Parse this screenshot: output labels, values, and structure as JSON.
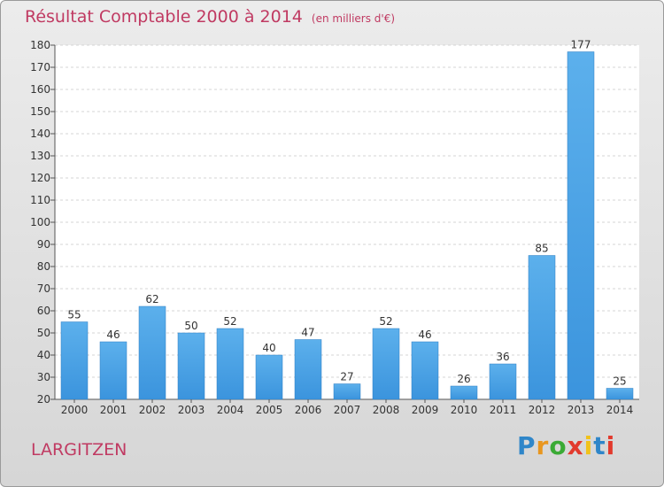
{
  "chart_data": {
    "type": "bar",
    "title": "Résultat Comptable 2000 à 2014",
    "subtitle": "(en milliers d'€)",
    "categories": [
      "2000",
      "2001",
      "2002",
      "2003",
      "2004",
      "2005",
      "2006",
      "2007",
      "2008",
      "2009",
      "2010",
      "2011",
      "2012",
      "2013",
      "2014"
    ],
    "values": [
      55,
      46,
      62,
      50,
      52,
      40,
      47,
      27,
      52,
      46,
      26,
      36,
      85,
      177,
      25
    ],
    "ylim": [
      20,
      180
    ],
    "yticks": [
      20,
      30,
      40,
      50,
      60,
      70,
      80,
      90,
      100,
      110,
      120,
      130,
      140,
      150,
      160,
      170,
      180
    ],
    "grid": true,
    "xlabel": "",
    "ylabel": "",
    "bar_color": "#3b94dd",
    "title_color": "#c03a62"
  },
  "place_name": "LARGITZEN",
  "logo": {
    "letters": [
      "P",
      "r",
      "o",
      "x",
      "i",
      "t",
      "i"
    ],
    "colors": [
      "#2f86c9",
      "#e8961f",
      "#3aaa35",
      "#e23a2d",
      "#f1c21b",
      "#2f86c9",
      "#e23a2d"
    ]
  }
}
